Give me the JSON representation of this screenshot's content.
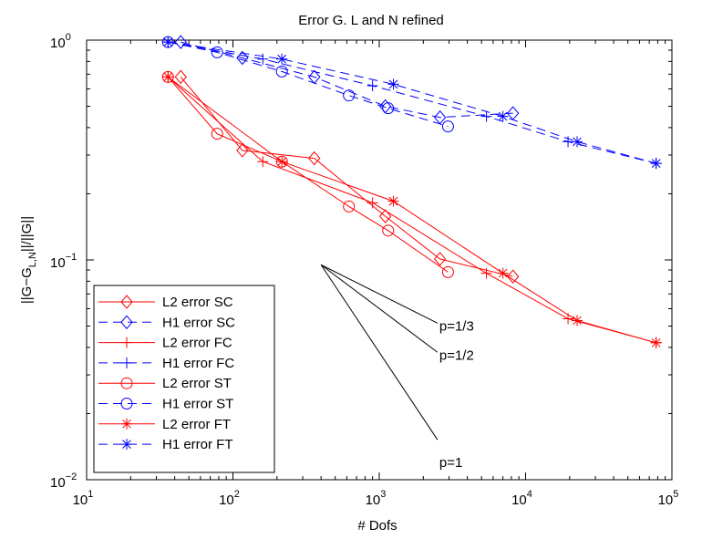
{
  "chart_data": {
    "type": "line",
    "title": "Error G. L and N refined",
    "xlabel": "# Dofs",
    "ylabel_parts": [
      "||G−G",
      "L,N",
      "||/||G||"
    ],
    "xscale": "log",
    "yscale": "log",
    "xlim": [
      10,
      100000
    ],
    "ylim": [
      0.01,
      1
    ],
    "grid": false,
    "legend_position": "bottom-left",
    "x_ticks": [
      {
        "base": "10",
        "exp": "1"
      },
      {
        "base": "10",
        "exp": "2"
      },
      {
        "base": "10",
        "exp": "3"
      },
      {
        "base": "10",
        "exp": "4"
      },
      {
        "base": "10",
        "exp": "5"
      }
    ],
    "y_ticks": [
      {
        "base": "10",
        "exp": "−2"
      },
      {
        "base": "10",
        "exp": "−1"
      },
      {
        "base": "10",
        "exp": "0"
      }
    ],
    "series": [
      {
        "name": "L2 error SC",
        "color": "#ff0000",
        "dash": "solid",
        "marker": "diamond",
        "x": [
          44,
          116,
          360,
          1100,
          2600,
          8200
        ],
        "y": [
          0.68,
          0.315,
          0.29,
          0.158,
          0.101,
          0.084
        ]
      },
      {
        "name": "H1 error SC",
        "color": "#0000ff",
        "dash": "dashed",
        "marker": "diamond",
        "x": [
          44,
          116,
          360,
          1100,
          2600,
          8200
        ],
        "y": [
          0.98,
          0.83,
          0.68,
          0.5,
          0.445,
          0.465
        ]
      },
      {
        "name": "L2 error FC",
        "color": "#ff0000",
        "dash": "solid",
        "marker": "plus",
        "x": [
          36,
          160,
          900,
          5400,
          19500,
          78000
        ],
        "y": [
          0.68,
          0.28,
          0.182,
          0.087,
          0.054,
          0.042
        ]
      },
      {
        "name": "H1 error FC",
        "color": "#0000ff",
        "dash": "dashed",
        "marker": "plus",
        "x": [
          36,
          160,
          900,
          5400,
          19500,
          78000
        ],
        "y": [
          0.98,
          0.82,
          0.62,
          0.45,
          0.345,
          0.275
        ]
      },
      {
        "name": "L2 error ST",
        "color": "#ff0000",
        "dash": "solid",
        "marker": "circle",
        "x": [
          36,
          78,
          216,
          620,
          1150,
          2950
        ],
        "y": [
          0.68,
          0.375,
          0.28,
          0.175,
          0.136,
          0.088
        ]
      },
      {
        "name": "H1 error ST",
        "color": "#0000ff",
        "dash": "dashed",
        "marker": "circle",
        "x": [
          36,
          78,
          216,
          620,
          1150,
          2950
        ],
        "y": [
          0.98,
          0.88,
          0.72,
          0.56,
          0.49,
          0.405
        ]
      },
      {
        "name": "L2 error FT",
        "color": "#ff0000",
        "dash": "solid",
        "marker": "star",
        "x": [
          36,
          216,
          1250,
          7000,
          22500,
          78000
        ],
        "y": [
          0.68,
          0.28,
          0.185,
          0.087,
          0.053,
          0.042
        ]
      },
      {
        "name": "H1 error FT",
        "color": "#0000ff",
        "dash": "dashed",
        "marker": "star",
        "x": [
          36,
          216,
          1250,
          7000,
          22500,
          78000
        ],
        "y": [
          0.98,
          0.82,
          0.63,
          0.45,
          0.345,
          0.275
        ]
      }
    ],
    "slope_triangle": {
      "origin": [
        400,
        0.095
      ],
      "end_x": 2500,
      "lines": [
        {
          "slope": "1/3",
          "label": "p=1/3"
        },
        {
          "slope": "1/2",
          "label": "p=1/2"
        },
        {
          "slope": "1",
          "label": "p=1"
        }
      ]
    }
  }
}
